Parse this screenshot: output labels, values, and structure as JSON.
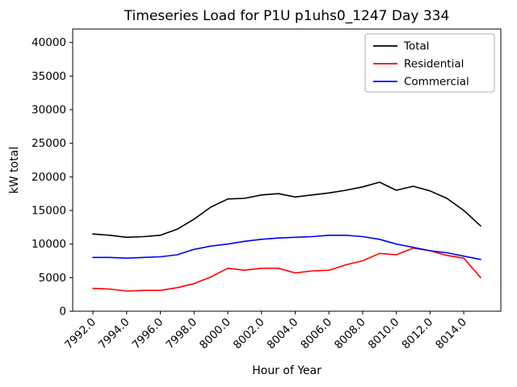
{
  "figure": {
    "background": "#ffffff"
  },
  "chart_data": {
    "type": "line",
    "title": "Timeseries Load for P1U p1uhs0_1247  Day 334",
    "xlabel": "Hour of Year",
    "ylabel": "kW total",
    "xlim": [
      7990.8,
      8016.2
    ],
    "ylim": [
      0,
      42000
    ],
    "grid": false,
    "legend_position": "upper right",
    "xticks": [
      7992,
      7994,
      7996,
      7998,
      8000,
      8002,
      8004,
      8006,
      8008,
      8010,
      8012,
      8014
    ],
    "xtick_labels": [
      "7992.0",
      "7994.0",
      "7996.0",
      "7998.0",
      "8000.0",
      "8002.0",
      "8004.0",
      "8006.0",
      "8008.0",
      "8010.0",
      "8012.0",
      "8014.0"
    ],
    "yticks": [
      0,
      5000,
      10000,
      15000,
      20000,
      25000,
      30000,
      35000,
      40000
    ],
    "ytick_labels": [
      "0",
      "5000",
      "10000",
      "15000",
      "20000",
      "25000",
      "30000",
      "35000",
      "40000"
    ],
    "x": [
      7992,
      7993,
      7994,
      7995,
      7996,
      7997,
      7998,
      7999,
      8000,
      8001,
      8002,
      8003,
      8004,
      8005,
      8006,
      8007,
      8008,
      8009,
      8010,
      8011,
      8012,
      8013,
      8014,
      8015
    ],
    "series": [
      {
        "name": "Total",
        "color": "#000000",
        "values": [
          11500,
          11300,
          11000,
          11100,
          11300,
          12200,
          13700,
          15500,
          16700,
          16800,
          17300,
          17500,
          17000,
          17300,
          17600,
          18000,
          18500,
          19200,
          18000,
          18600,
          17900,
          16800,
          15000,
          12700
        ]
      },
      {
        "name": "Residential",
        "color": "#ff0000",
        "values": [
          3400,
          3300,
          3000,
          3100,
          3100,
          3500,
          4100,
          5100,
          6400,
          6100,
          6400,
          6400,
          5700,
          6000,
          6100,
          6900,
          7500,
          8600,
          8400,
          9400,
          9000,
          8300,
          7900,
          5000
        ]
      },
      {
        "name": "Commercial",
        "color": "#0000ff",
        "values": [
          8000,
          8000,
          7900,
          8000,
          8100,
          8400,
          9200,
          9700,
          10000,
          10400,
          10700,
          10900,
          11000,
          11100,
          11300,
          11300,
          11100,
          10700,
          10000,
          9500,
          9000,
          8700,
          8200,
          7700
        ]
      }
    ]
  }
}
